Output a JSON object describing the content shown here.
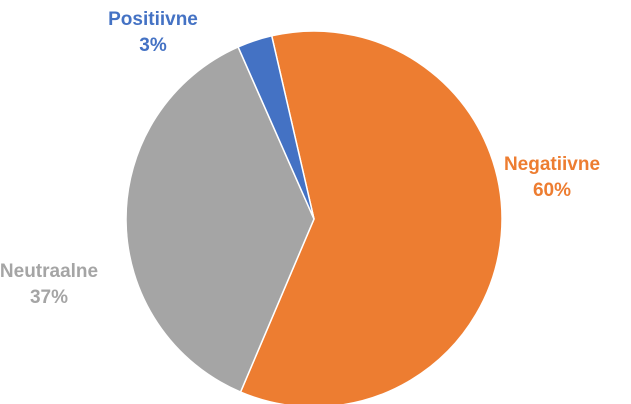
{
  "chart_data": {
    "type": "pie",
    "series": [
      {
        "slices": [
          {
            "label": "Negatiivne",
            "value": 60,
            "value_label": "60%",
            "color": "#ED7D31"
          },
          {
            "label": "Neutraalne",
            "value": 37,
            "value_label": "37%",
            "color": "#A5A5A5"
          },
          {
            "label": "Positiivne",
            "value": 3,
            "value_label": "3%",
            "color": "#4472C4"
          }
        ]
      }
    ],
    "start_angle_deg": -13,
    "direction": "clockwise",
    "legend": "none",
    "labels_outside": true
  }
}
